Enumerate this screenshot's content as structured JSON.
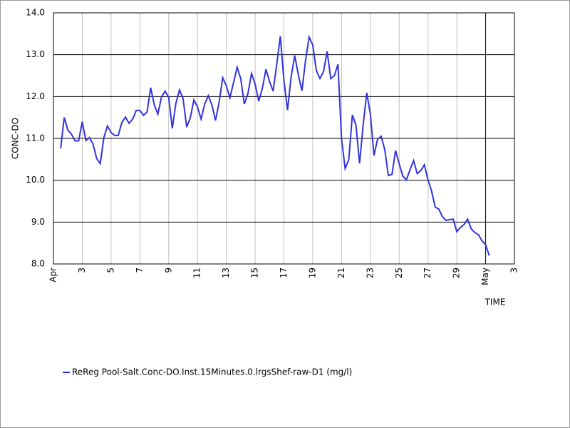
{
  "chart_data": {
    "type": "line",
    "x_label": "TIME",
    "y_label": "CONC-DO",
    "x": [
      1.5,
      1.75,
      2,
      2.25,
      2.5,
      2.75,
      3,
      3.25,
      3.5,
      3.75,
      4,
      4.25,
      4.5,
      4.75,
      5,
      5.25,
      5.5,
      5.75,
      6,
      6.25,
      6.5,
      6.75,
      7,
      7.25,
      7.5,
      7.75,
      8,
      8.25,
      8.5,
      8.75,
      9,
      9.25,
      9.5,
      9.75,
      10,
      10.25,
      10.5,
      10.75,
      11,
      11.25,
      11.5,
      11.75,
      12,
      12.25,
      12.5,
      12.75,
      13,
      13.25,
      13.5,
      13.75,
      14,
      14.25,
      14.5,
      14.75,
      15,
      15.25,
      15.5,
      15.75,
      16,
      16.25,
      16.5,
      16.75,
      17,
      17.25,
      17.5,
      17.75,
      18,
      18.25,
      18.5,
      18.75,
      19,
      19.25,
      19.5,
      19.75,
      20,
      20.25,
      20.5,
      20.75,
      21,
      21.25,
      21.5,
      21.75,
      22,
      22.25,
      22.5,
      22.75,
      23,
      23.25,
      23.5,
      23.75,
      24,
      24.25,
      24.5,
      24.75,
      25,
      25.25,
      25.5,
      25.75,
      26,
      26.25,
      26.5,
      26.75,
      27,
      27.25,
      27.5,
      27.75,
      28,
      28.25,
      28.5,
      28.75,
      29,
      29.25,
      29.5,
      29.75,
      30,
      30.25,
      30.5,
      30.75,
      31,
      31.25
    ],
    "series": [
      {
        "name": "ReReg Pool-Salt.Conc-DO.Inst.15Minutes.0.lrgsShef-raw-D1 (mg/l)",
        "color": "#3333dd",
        "values": [
          10.76,
          11.5,
          11.2,
          11.1,
          10.94,
          10.94,
          11.4,
          10.95,
          11.02,
          10.86,
          10.52,
          10.4,
          11.02,
          11.3,
          11.14,
          11.07,
          11.07,
          11.38,
          11.51,
          11.36,
          11.46,
          11.67,
          11.67,
          11.55,
          11.63,
          12.21,
          11.8,
          11.58,
          11.99,
          12.13,
          11.98,
          11.24,
          11.84,
          12.16,
          11.95,
          11.27,
          11.49,
          11.92,
          11.75,
          11.46,
          11.82,
          12.02,
          11.8,
          11.43,
          11.86,
          12.45,
          12.26,
          11.97,
          12.33,
          12.7,
          12.43,
          11.82,
          12.07,
          12.55,
          12.3,
          11.89,
          12.19,
          12.65,
          12.36,
          12.13,
          12.77,
          13.44,
          12.38,
          11.68,
          12.47,
          12.98,
          12.52,
          12.14,
          12.86,
          13.42,
          13.23,
          12.62,
          12.43,
          12.6,
          13.08,
          12.43,
          12.5,
          12.77,
          10.98,
          10.28,
          10.49,
          11.56,
          11.32,
          10.4,
          11.32,
          12.09,
          11.58,
          10.59,
          10.98,
          11.05,
          10.73,
          10.11,
          10.14,
          10.71,
          10.39,
          10.1,
          10.01,
          10.25,
          10.47,
          10.16,
          10.23,
          10.37,
          10.01,
          9.74,
          9.36,
          9.31,
          9.13,
          9.04,
          9.06,
          9.07,
          8.77,
          8.87,
          8.94,
          9.07,
          8.84,
          8.75,
          8.7,
          8.55,
          8.46,
          8.2
        ]
      }
    ],
    "xlim": [
      1,
      33
    ],
    "xticks": [
      {
        "value": 1,
        "label": "Apr"
      },
      3,
      5,
      7,
      9,
      11,
      13,
      15,
      17,
      19,
      21,
      23,
      25,
      27,
      29,
      {
        "value": 31,
        "label": "May"
      },
      {
        "value": 33,
        "label": "3"
      }
    ],
    "ylim": [
      8,
      14
    ],
    "yticks": [
      {
        "value": 8,
        "label": "8.0"
      },
      {
        "value": 9,
        "label": "9.0"
      },
      {
        "value": 10,
        "label": "10.0"
      },
      {
        "value": 11,
        "label": "11.0"
      },
      {
        "value": 12,
        "label": "12.0"
      },
      {
        "value": 13,
        "label": "13.0"
      },
      {
        "value": 14,
        "label": "14.0"
      }
    ],
    "grid": true
  }
}
